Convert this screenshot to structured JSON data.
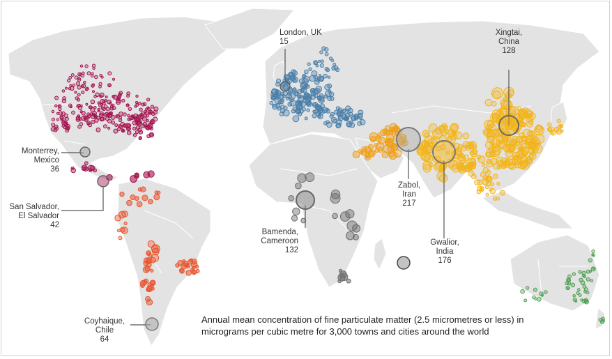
{
  "caption": "Annual mean concentration of fine particulate matter (2.5 micrometres or less) in micrograms per cubic metre for 3,000 towns and cities around the world",
  "colors": {
    "land": "#e3e3e3",
    "north_america": "#a3134f",
    "central_south_america": "#e8552f",
    "europe": "#4a7fa8",
    "asia": "#f3b418",
    "middle_east": "#ef9e16",
    "africa": "#6d6d6d",
    "oceania": "#4e9e51"
  },
  "cities": [
    {
      "id": "london",
      "name": "London, UK",
      "value": "15"
    },
    {
      "id": "xingtai",
      "name": "Xingtai,",
      "country": "China",
      "value": "128"
    },
    {
      "id": "monterrey",
      "name": "Monterrey,",
      "country": "Mexico",
      "value": "36"
    },
    {
      "id": "sansalvador",
      "name": "San Salvador,",
      "country": "El Salvador",
      "value": "42"
    },
    {
      "id": "zabol",
      "name": "Zabol,",
      "country": "Iran",
      "value": "217"
    },
    {
      "id": "bamenda",
      "name": "Bamenda,",
      "country": "Cameroon",
      "value": "132"
    },
    {
      "id": "gwalior",
      "name": "Gwalior,",
      "country": "India",
      "value": "176"
    },
    {
      "id": "coyhaique",
      "name": "Coyhaique,",
      "country": "Chile",
      "value": "64"
    }
  ]
}
